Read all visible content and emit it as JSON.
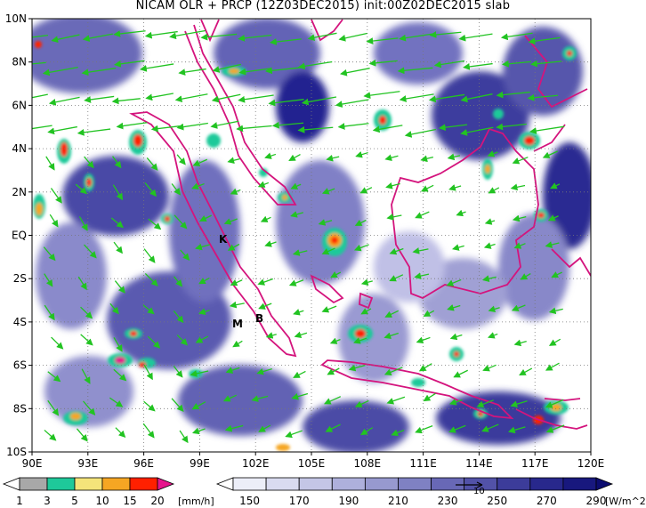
{
  "title": "NICAM OLR + PRCP (12Z03DEC2015) init:00Z02DEC2015 slab",
  "map": {
    "lat_labels": [
      "10N",
      "8N",
      "6N",
      "4N",
      "2N",
      "EQ",
      "2S",
      "4S",
      "6S",
      "8S",
      "10S"
    ],
    "lon_labels": [
      "90E",
      "93E",
      "96E",
      "99E",
      "102E",
      "105E",
      "108E",
      "111E",
      "114E",
      "117E",
      "120E"
    ],
    "markers": [
      {
        "label": "K"
      },
      {
        "label": "M"
      },
      {
        "label": "B"
      }
    ],
    "colors": {
      "coast": "#d4147d",
      "wind": "#22c322",
      "olr_dark": "#1a1a8c",
      "olr_mid": "#5a5ab4",
      "olr_light": "#d6d6ef"
    }
  },
  "precip_colorbar": {
    "ticks": [
      "1",
      "3",
      "5",
      "10",
      "15",
      "20"
    ],
    "unit": "[mm/h]",
    "colors": [
      "#ffffff",
      "#a8a8a8",
      "#1ec99a",
      "#f4e47a",
      "#f5a623",
      "#ff2000",
      "#e6158c"
    ]
  },
  "olr_colorbar": {
    "ticks": [
      "150",
      "170",
      "190",
      "210",
      "230",
      "250",
      "270",
      "290"
    ],
    "unit": "[W/m^2]",
    "vector_ref": "10",
    "colors": [
      "#ffffff",
      "#eceef8",
      "#d9dbf0",
      "#c4c6e6",
      "#aeb0dc",
      "#9799cf",
      "#7f81c3",
      "#6868b6",
      "#5252a8",
      "#3c3c9a",
      "#28288c",
      "#18187e",
      "#0c0c70"
    ]
  }
}
